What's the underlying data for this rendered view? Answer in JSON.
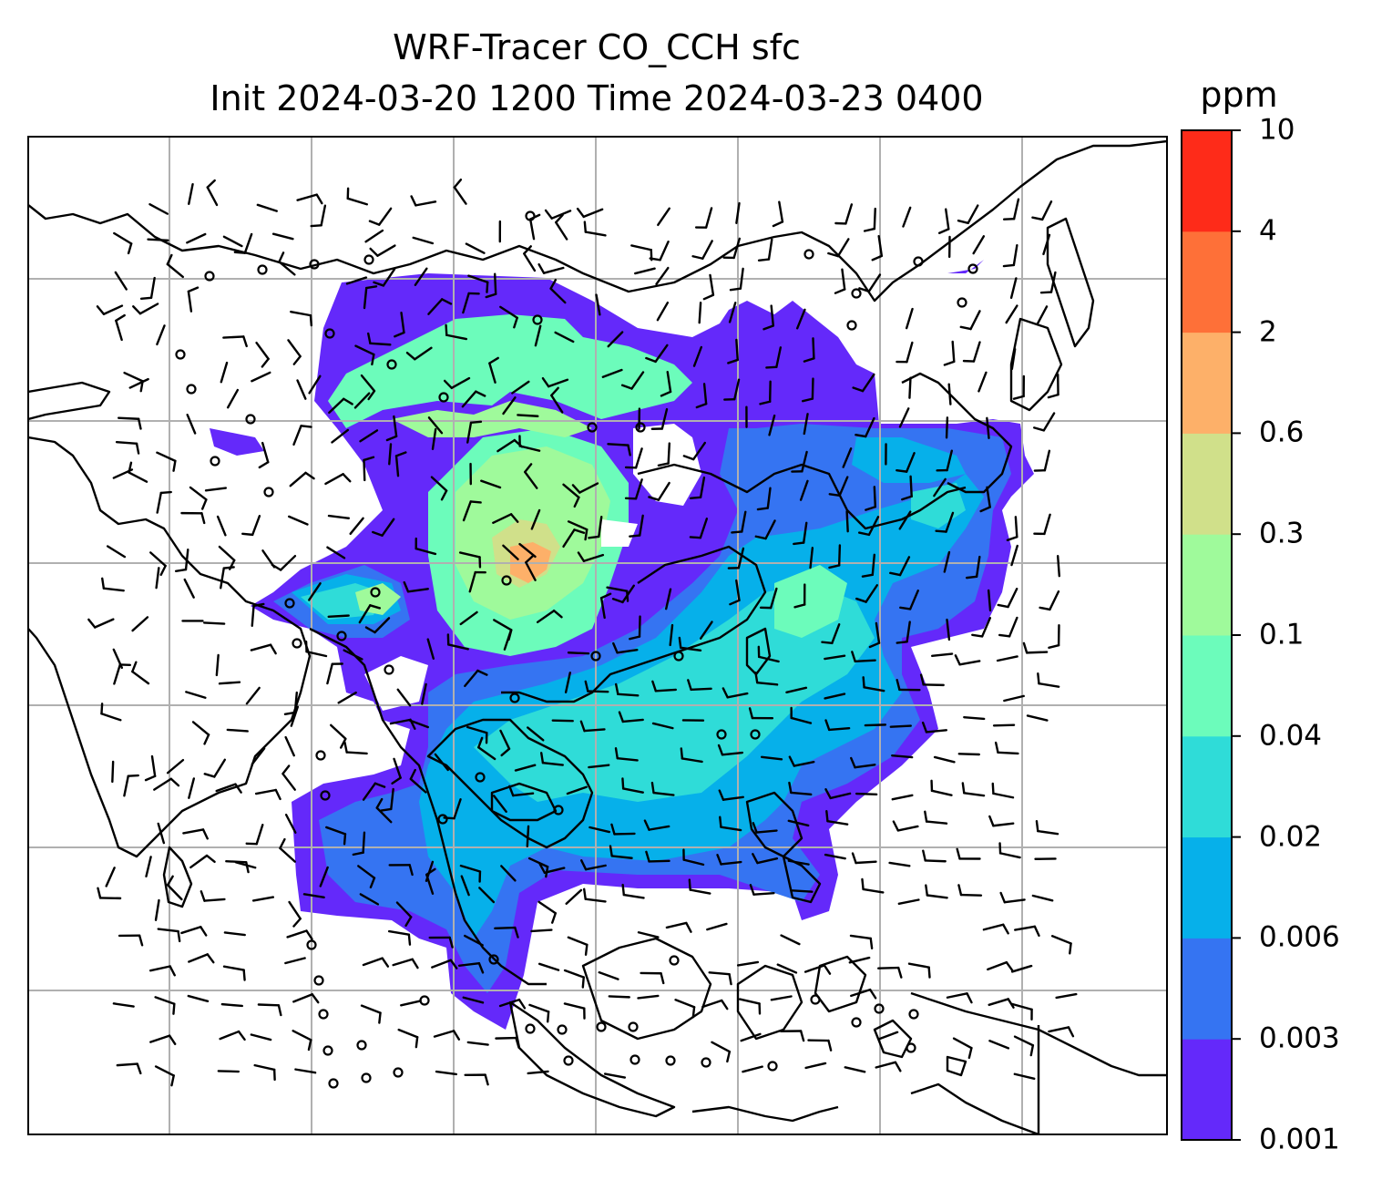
{
  "title": {
    "line1": "WRF-Tracer CO_CCH sfc",
    "line2": "Init 2024-03-20 1200 Time 2024-03-23 0400"
  },
  "colorbar": {
    "unit": "ppm",
    "levels": [
      "0.001",
      "0.003",
      "0.006",
      "0.02",
      "0.04",
      "0.1",
      "0.3",
      "0.6",
      "2",
      "4",
      "10"
    ],
    "colors": [
      "#6429fa",
      "#3574f2",
      "#06b0ea",
      "#2fdcd8",
      "#6cfcbb",
      "#9ffa9b",
      "#d0e08a",
      "#fdb069",
      "#fe7038",
      "#fe2b19"
    ]
  },
  "map": {
    "gridlines": true,
    "gridline_color": "#b0b0b0",
    "coastline_color": "#000000",
    "wind_barbs": true
  }
}
